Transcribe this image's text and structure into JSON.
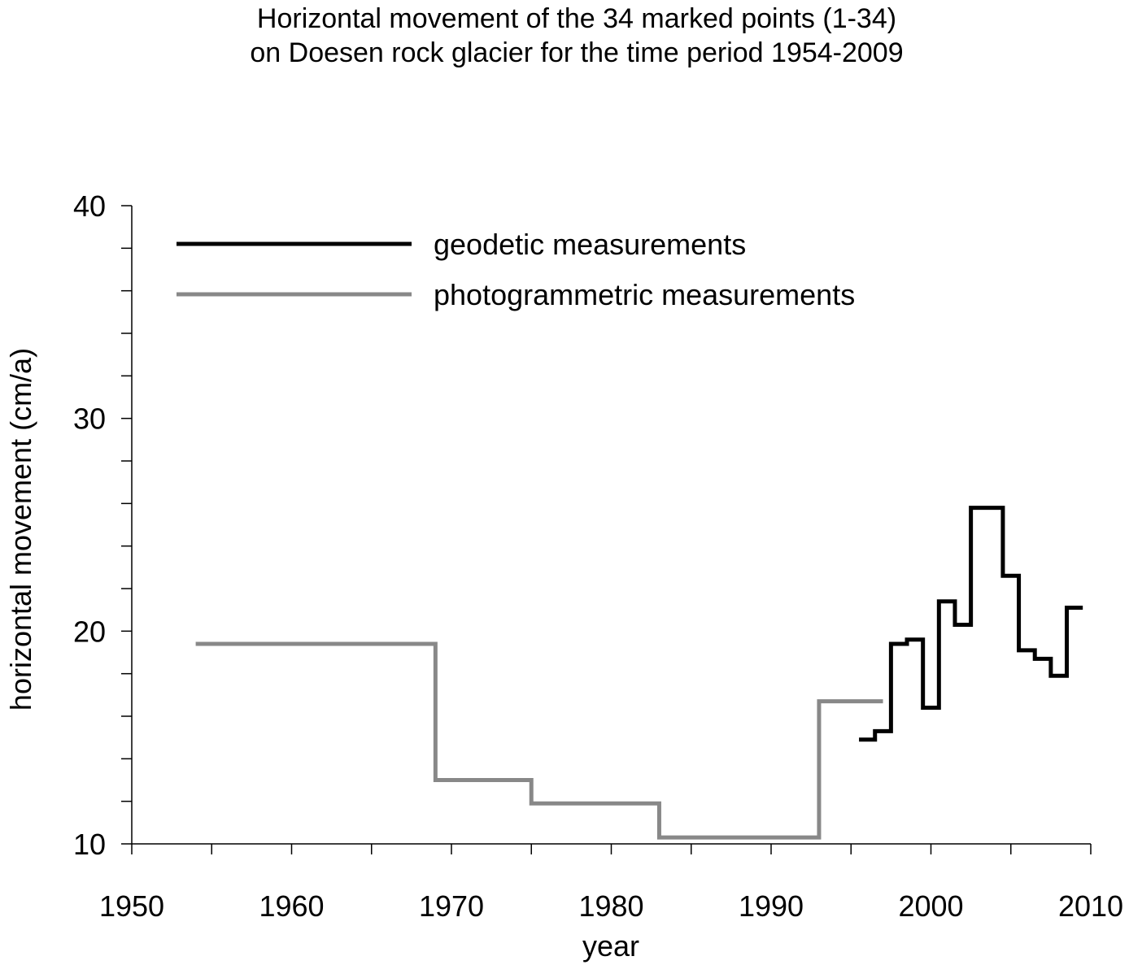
{
  "chart_data": {
    "type": "line",
    "title_line1": "Horizontal movement of the 34 marked points (1-34)",
    "title_line2": "on Doesen rock glacier for the time period 1954-2009",
    "xlabel": "year",
    "ylabel": "horizontal movement (cm/a)",
    "xlim": [
      1950,
      2010
    ],
    "ylim": [
      10,
      40
    ],
    "x_ticks": [
      1950,
      1960,
      1970,
      1980,
      1990,
      2000,
      2010
    ],
    "y_ticks": [
      10,
      20,
      30,
      40
    ],
    "grid": false,
    "legend_position": "top-left",
    "series": [
      {
        "name": "geodetic measurements",
        "color": "#000000",
        "step": true,
        "x": [
          1995.5,
          1996.5,
          1997.5,
          1998.5,
          1999.5,
          2000.5,
          2001.5,
          2002.5,
          2004.5,
          2005.5,
          2006.5,
          2007.5,
          2008.5,
          2009.5
        ],
        "y": [
          14.9,
          15.3,
          19.4,
          19.6,
          16.4,
          21.4,
          20.3,
          25.8,
          22.6,
          19.1,
          18.7,
          17.9,
          21.1,
          21.1
        ]
      },
      {
        "name": "photogrammetric measurements",
        "color": "#888888",
        "step": true,
        "x": [
          1954,
          1969,
          1975,
          1983,
          1993,
          1997
        ],
        "y": [
          19.4,
          13.0,
          11.9,
          10.3,
          16.7,
          16.7
        ]
      }
    ]
  }
}
